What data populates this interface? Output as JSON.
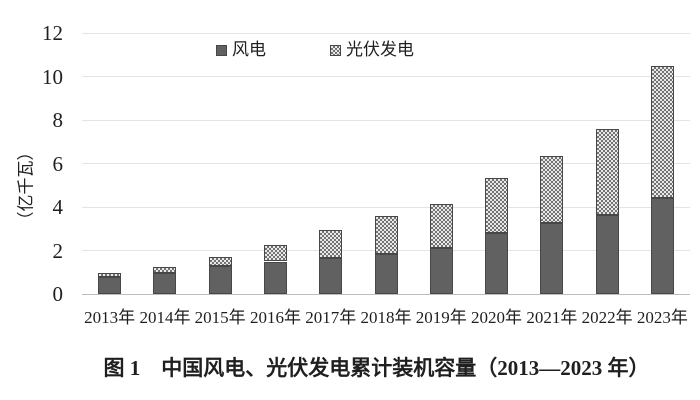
{
  "caption": "图 1　中国风电、光伏发电累计装机容量（2013—2023 年）",
  "chart_data": {
    "type": "bar",
    "stacked": true,
    "title": "",
    "xlabel": "",
    "ylabel": "（亿千瓦）",
    "ylim": [
      0,
      12
    ],
    "yticks": [
      0,
      2,
      4,
      6,
      8,
      10,
      12
    ],
    "grid": true,
    "legend_position": "top-center",
    "categories": [
      "2013年",
      "2014年",
      "2015年",
      "2016年",
      "2017年",
      "2018年",
      "2019年",
      "2020年",
      "2021年",
      "2022年",
      "2023年"
    ],
    "series": [
      {
        "name": "风电",
        "style": "solid-dark-gray",
        "values": [
          0.77,
          0.96,
          1.29,
          1.49,
          1.64,
          1.84,
          2.1,
          2.81,
          3.28,
          3.65,
          4.41
        ]
      },
      {
        "name": "光伏发电",
        "style": "checkered-pattern",
        "values": [
          0.19,
          0.28,
          0.43,
          0.77,
          1.3,
          1.74,
          2.04,
          2.53,
          3.06,
          3.93,
          6.09
        ]
      }
    ]
  },
  "colors": {
    "wind_fill": "#616161",
    "bar_border": "#474747",
    "pv_dot": "#737373",
    "pv_bg": "#e9e9e9",
    "gridline": "#e4e4e4",
    "axis_line": "#bdbdbd",
    "text": "#1f1f1f"
  }
}
